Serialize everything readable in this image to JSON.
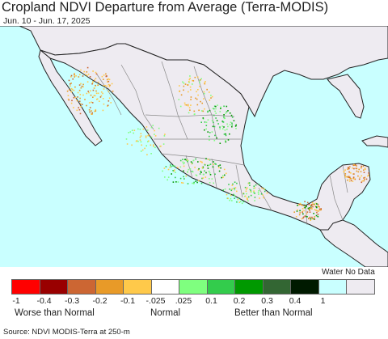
{
  "title": "Cropland NDVI Departure from Average (Terra-MODIS)",
  "subtitle": "Jun. 10 - Jun. 17, 2025",
  "source": "Source: NDVI MODIS-Terra at 250-m",
  "colors": {
    "water": "#c9ffff",
    "land": "#eeebf1",
    "border": "#222222",
    "state_border": "#8a8a8a"
  },
  "legend": {
    "swatches": [
      {
        "color": "#ff0000"
      },
      {
        "color": "#990000"
      },
      {
        "color": "#cc6633"
      },
      {
        "color": "#e89a28"
      },
      {
        "color": "#ffc94a"
      },
      {
        "color": "#ffffff"
      },
      {
        "color": "#7fff7f"
      },
      {
        "color": "#33cc4c"
      },
      {
        "color": "#009900"
      },
      {
        "color": "#336633"
      },
      {
        "color": "#001a00"
      },
      {
        "color": "#c9ffff"
      },
      {
        "color": "#eeebf1"
      }
    ],
    "ticks": [
      "-1",
      "-0.4",
      "-0.3",
      "-0.2",
      "-0.1",
      "-.025",
      ".025",
      "0.1",
      "0.2",
      "0.3",
      "0.4",
      "1"
    ],
    "nodata_label": "Water No Data",
    "worse_label": "Worse than Normal",
    "normal_label": "Normal",
    "better_label": "Better than Normal"
  }
}
